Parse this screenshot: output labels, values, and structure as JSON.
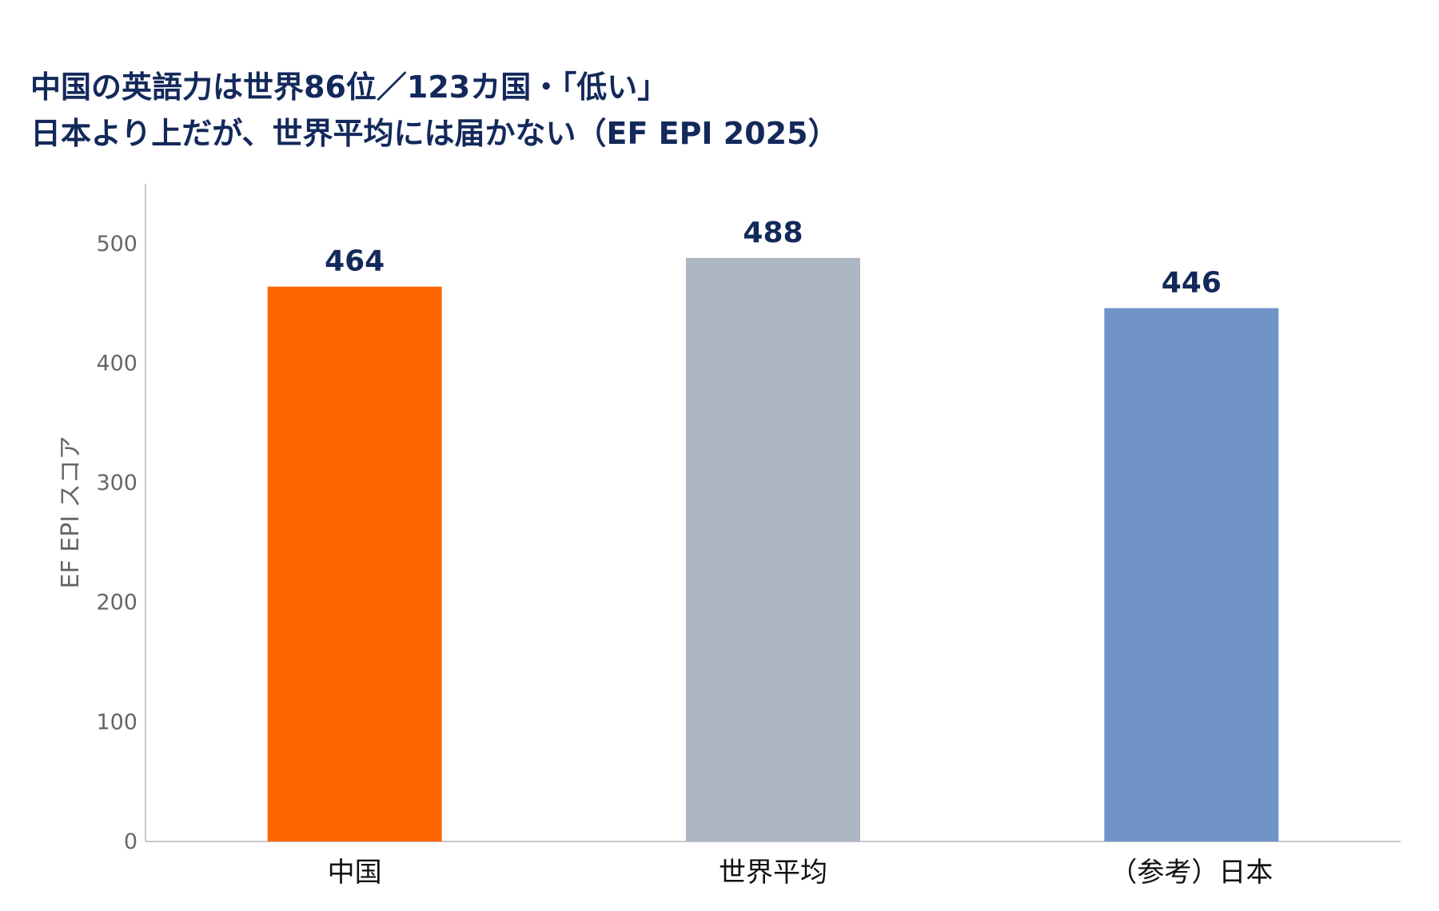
{
  "chart_data": {
    "type": "bar",
    "title_line1": "中国の英語力は世界86位／123カ国・「低い」",
    "title_line2": "日本より上だが、世界平均には届かない（EF EPI 2025）",
    "xlabel": "",
    "ylabel": "EF EPI スコア",
    "ylim": [
      0,
      550
    ],
    "yticks": [
      0,
      100,
      200,
      300,
      400,
      500
    ],
    "categories": [
      "中国",
      "世界平均",
      "（参考）日本"
    ],
    "values": [
      464,
      488,
      446
    ],
    "value_labels": [
      "464",
      "488",
      "446"
    ],
    "bar_colors": [
      "#ff6600",
      "#adb7c4",
      "#7094c8"
    ],
    "grid": false,
    "legend": "none"
  }
}
